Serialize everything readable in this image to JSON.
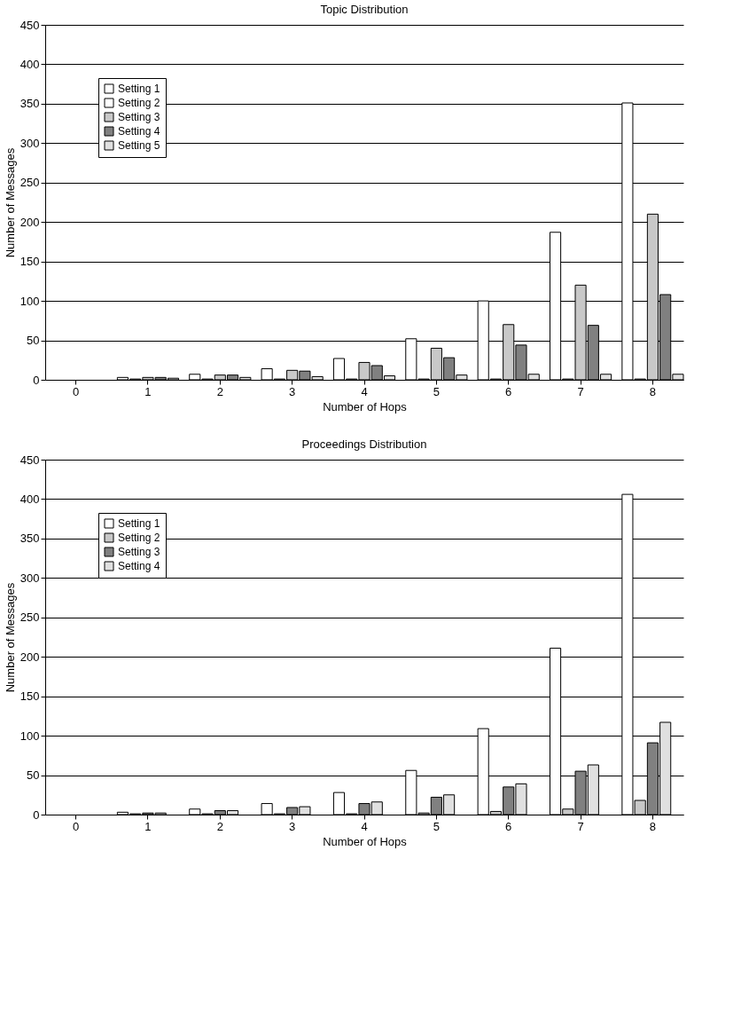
{
  "chart_data": [
    {
      "type": "bar",
      "title": "Topic Distribution",
      "xlabel": "Number of Hops",
      "ylabel": "Number of Messages",
      "categories": [
        "0",
        "1",
        "2",
        "3",
        "4",
        "5",
        "6",
        "7",
        "8"
      ],
      "ylim": [
        0,
        450
      ],
      "yticks": [
        0,
        50,
        100,
        150,
        200,
        250,
        300,
        350,
        400,
        450
      ],
      "grid": "y",
      "legend": "top left",
      "series": [
        {
          "name": "Setting 1",
          "color": "#ffffff",
          "values": [
            0,
            3,
            7,
            14,
            27,
            52,
            100,
            187,
            351
          ]
        },
        {
          "name": "Setting 2",
          "color": "#ffffff",
          "values": [
            0,
            1,
            1,
            1,
            1,
            1,
            1,
            1,
            1
          ]
        },
        {
          "name": "Setting 3",
          "color": "#c8c8c8",
          "values": [
            0,
            3,
            6,
            12,
            22,
            40,
            70,
            120,
            210
          ]
        },
        {
          "name": "Setting 4",
          "color": "#808080",
          "values": [
            0,
            3,
            6,
            11,
            18,
            28,
            44,
            69,
            108
          ]
        },
        {
          "name": "Setting 5",
          "color": "#e0e0e0",
          "values": [
            0,
            2,
            3,
            4,
            5,
            6,
            7,
            7,
            7
          ]
        }
      ]
    },
    {
      "type": "bar",
      "title": "Proceedings Distribution",
      "xlabel": "Number of Hops",
      "ylabel": "Number of Messages",
      "categories": [
        "0",
        "1",
        "2",
        "3",
        "4",
        "5",
        "6",
        "7",
        "8"
      ],
      "ylim": [
        0,
        450
      ],
      "yticks": [
        0,
        50,
        100,
        150,
        200,
        250,
        300,
        350,
        400,
        450
      ],
      "grid": "y",
      "legend": "top left",
      "series": [
        {
          "name": "Setting 1",
          "color": "#ffffff",
          "values": [
            0,
            3,
            7,
            14,
            28,
            56,
            109,
            211,
            406
          ]
        },
        {
          "name": "Setting 2",
          "color": "#c8c8c8",
          "values": [
            0,
            1,
            1,
            1,
            1,
            2,
            4,
            7,
            18
          ]
        },
        {
          "name": "Setting 3",
          "color": "#808080",
          "values": [
            0,
            2,
            5,
            9,
            14,
            22,
            35,
            55,
            91
          ]
        },
        {
          "name": "Setting 4",
          "color": "#e0e0e0",
          "values": [
            0,
            2,
            5,
            10,
            16,
            25,
            39,
            63,
            117
          ]
        }
      ]
    }
  ]
}
